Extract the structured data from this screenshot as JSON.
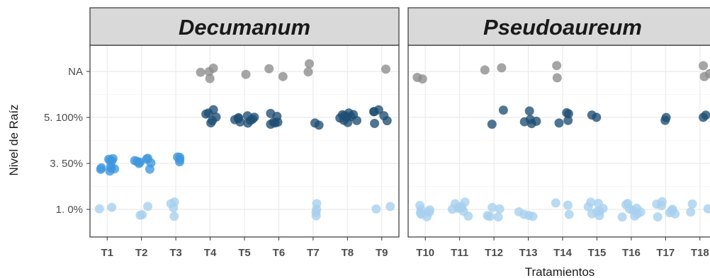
{
  "chart_data": {
    "type": "scatter",
    "xlabel": "Tratamientos",
    "ylabel": "Nivel de Raíz",
    "y_categories": [
      "1. 0%",
      "3. 50%",
      "5. 100%",
      "NA"
    ],
    "grid": true,
    "legend": "none",
    "colors": {
      "1. 0%": "#a6cfee",
      "3. 50%": "#3d97de",
      "5. 100%": "#1f4e73",
      "NA": "#8c8c8c"
    },
    "panels": [
      {
        "title": "Decumanum",
        "categories": [
          "T1",
          "T2",
          "T3",
          "T4",
          "T5",
          "T6",
          "T7",
          "T8",
          "T9"
        ],
        "points": [
          {
            "x": "T1",
            "y": "3. 50%",
            "n": 10
          },
          {
            "x": "T1",
            "y": "1. 0%",
            "n": 2
          },
          {
            "x": "T2",
            "y": "3. 50%",
            "n": 8
          },
          {
            "x": "T2",
            "y": "1. 0%",
            "n": 3
          },
          {
            "x": "T3",
            "y": "3. 50%",
            "n": 4
          },
          {
            "x": "T3",
            "y": "1. 0%",
            "n": 4
          },
          {
            "x": "T4",
            "y": "5. 100%",
            "n": 6
          },
          {
            "x": "T4",
            "y": "NA",
            "n": 4
          },
          {
            "x": "T5",
            "y": "5. 100%",
            "n": 9
          },
          {
            "x": "T5",
            "y": "NA",
            "n": 1
          },
          {
            "x": "T6",
            "y": "5. 100%",
            "n": 6
          },
          {
            "x": "T6",
            "y": "NA",
            "n": 2
          },
          {
            "x": "T7",
            "y": "5. 100%",
            "n": 2
          },
          {
            "x": "T7",
            "y": "NA",
            "n": 2
          },
          {
            "x": "T7",
            "y": "1. 0%",
            "n": 4
          },
          {
            "x": "T8",
            "y": "5. 100%",
            "n": 10
          },
          {
            "x": "T9",
            "y": "5. 100%",
            "n": 6
          },
          {
            "x": "T9",
            "y": "NA",
            "n": 1
          },
          {
            "x": "T9",
            "y": "1. 0%",
            "n": 2
          }
        ]
      },
      {
        "title": "Pseudoaureum",
        "categories": [
          "T10",
          "T11",
          "T12",
          "T13",
          "T14",
          "T15",
          "T16",
          "T17",
          "T18"
        ],
        "points": [
          {
            "x": "T10",
            "y": "NA",
            "n": 2
          },
          {
            "x": "T10",
            "y": "1. 0%",
            "n": 7
          },
          {
            "x": "T11",
            "y": "1. 0%",
            "n": 10
          },
          {
            "x": "T12",
            "y": "NA",
            "n": 2
          },
          {
            "x": "T12",
            "y": "5. 100%",
            "n": 2
          },
          {
            "x": "T12",
            "y": "1. 0%",
            "n": 5
          },
          {
            "x": "T13",
            "y": "5. 100%",
            "n": 5
          },
          {
            "x": "T13",
            "y": "1. 0%",
            "n": 4
          },
          {
            "x": "T14",
            "y": "NA",
            "n": 2
          },
          {
            "x": "T14",
            "y": "5. 100%",
            "n": 4
          },
          {
            "x": "T14",
            "y": "1. 0%",
            "n": 3
          },
          {
            "x": "T15",
            "y": "5. 100%",
            "n": 2
          },
          {
            "x": "T15",
            "y": "1. 0%",
            "n": 8
          },
          {
            "x": "T16",
            "y": "1. 0%",
            "n": 9
          },
          {
            "x": "T17",
            "y": "5. 100%",
            "n": 2
          },
          {
            "x": "T17",
            "y": "1. 0%",
            "n": 8
          },
          {
            "x": "T18",
            "y": "NA",
            "n": 3
          },
          {
            "x": "T18",
            "y": "5. 100%",
            "n": 2
          },
          {
            "x": "T18",
            "y": "1. 0%",
            "n": 3
          }
        ]
      }
    ]
  }
}
